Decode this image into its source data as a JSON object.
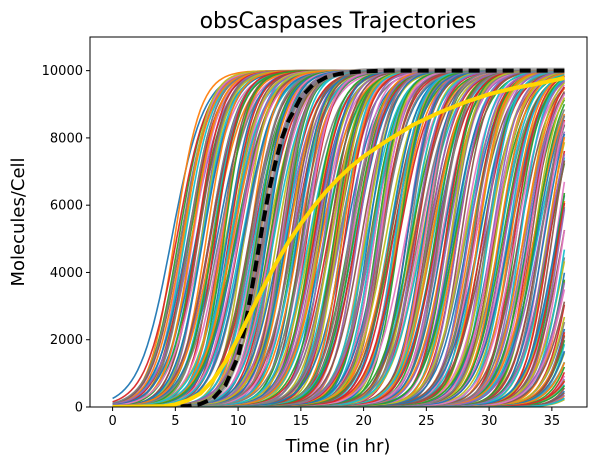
{
  "chart_data": {
    "type": "line",
    "title": "obsCaspases Trajectories",
    "xlabel": "Time (in hr)",
    "ylabel": "Molecules/Cell",
    "xlim": [
      -1.8,
      37.8
    ],
    "ylim": [
      0,
      11000
    ],
    "xticks": [
      0,
      5,
      10,
      15,
      20,
      25,
      30,
      35
    ],
    "yticks": [
      0,
      2000,
      4000,
      6000,
      8000,
      10000
    ],
    "grid": false,
    "legend": "none",
    "max_value": 10000,
    "time_range": [
      0,
      36
    ],
    "trajectory_bundle": {
      "description_count": 400,
      "first_midpoint_hr": 5.0,
      "last_midpoint_hr": 40.0,
      "rise_width_hr": 1.1,
      "palette": [
        "#1f77b4",
        "#ff7f0e",
        "#2ca02c",
        "#d62728",
        "#9467bd",
        "#8c564b",
        "#e377c2",
        "#7f7f7f",
        "#bcbd22",
        "#17becf"
      ]
    },
    "series": [
      {
        "color": "#000000",
        "style": "dashed",
        "x": [
          0,
          4,
          6,
          7,
          8,
          9,
          10,
          10.5,
          11,
          11.5,
          12,
          12.5,
          13,
          13.5,
          14,
          15,
          16,
          17,
          18,
          19,
          20,
          22,
          24,
          36
        ],
        "y": [
          0,
          0,
          30,
          90,
          250,
          650,
          1500,
          2300,
          3300,
          4400,
          5500,
          6500,
          7300,
          8000,
          8500,
          9200,
          9600,
          9800,
          9900,
          9950,
          9980,
          10000,
          10000,
          10000
        ]
      },
      {
        "color": "#ffd700",
        "style": "solid",
        "x": [
          0,
          4,
          5,
          6,
          7,
          8,
          9,
          10,
          11,
          12,
          13,
          14,
          15,
          16,
          17,
          18,
          19,
          20,
          22,
          24,
          26,
          28,
          30,
          32,
          34,
          36
        ],
        "y": [
          0,
          20,
          80,
          200,
          400,
          800,
          1350,
          2050,
          2800,
          3550,
          4250,
          4900,
          5450,
          5950,
          6400,
          6800,
          7150,
          7450,
          7950,
          8400,
          8750,
          9050,
          9300,
          9480,
          9620,
          9780
        ]
      }
    ]
  }
}
